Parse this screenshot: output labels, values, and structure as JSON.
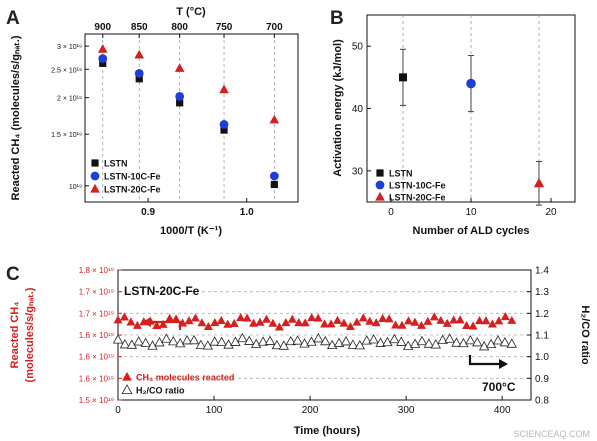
{
  "chart_data": [
    {
      "panel": "A",
      "type": "scatter",
      "xlabel": "1000/T (K⁻¹)",
      "ylabel": "Reacted CH₄ (molecules/s/gₙₐₜ.)",
      "top_axis_label": "T (°C)",
      "y_scale": "log",
      "xlim": [
        0.836,
        1.052
      ],
      "ylim": [
        8.8e+18,
        3.3e+19
      ],
      "x_ticks": [
        0.9,
        1.0
      ],
      "x_tick_labels": [
        "0.9",
        "1.0"
      ],
      "y_tick_labels": [
        {
          "value": 3e+19,
          "label": "3 × 10¹⁹"
        },
        {
          "value": 2.5e+19,
          "label": "2.5 × 10¹⁹"
        },
        {
          "value": 2e+19,
          "label": "2 × 10¹⁹"
        },
        {
          "value": 1.5e+19,
          "label": "1.5 × 10¹⁹"
        },
        {
          "value": 1e+19,
          "label": "10¹⁹"
        }
      ],
      "top_ticks": [
        {
          "x": 0.854,
          "label": "900"
        },
        {
          "x": 0.891,
          "label": "850"
        },
        {
          "x": 0.932,
          "label": "800"
        },
        {
          "x": 0.977,
          "label": "750"
        },
        {
          "x": 1.028,
          "label": "700"
        }
      ],
      "gridlines": "vertical dashed at each temperature",
      "legend_position": "bottom-left",
      "series": [
        {
          "name": "LSTN",
          "marker": "square",
          "color": "#111111",
          "x": [
            0.854,
            0.891,
            0.932,
            0.977,
            1.028
          ],
          "y": [
            2.62e+19,
            2.32e+19,
            1.92e+19,
            1.55e+19,
            1.01e+19
          ]
        },
        {
          "name": "LSTN-10C-Fe",
          "marker": "circle",
          "color": "#1d3fd8",
          "x": [
            0.854,
            0.891,
            0.932,
            0.977,
            1.028
          ],
          "y": [
            2.72e+19,
            2.42e+19,
            2.02e+19,
            1.62e+19,
            1.08e+19
          ]
        },
        {
          "name": "LSTN-20C-Fe",
          "marker": "triangle",
          "color": "#d62020",
          "x": [
            0.854,
            0.891,
            0.932,
            0.977,
            1.028
          ],
          "y": [
            2.93e+19,
            2.8e+19,
            2.52e+19,
            2.13e+19,
            1.68e+19
          ]
        }
      ]
    },
    {
      "panel": "B",
      "type": "scatter",
      "xlabel": "Number of ALD cycles",
      "ylabel": "Activation energy (kJ/mol)",
      "xlim": [
        -3,
        23
      ],
      "ylim": [
        25,
        55
      ],
      "x_ticks": [
        0,
        10,
        20
      ],
      "y_ticks": [
        30,
        40,
        50
      ],
      "gridlines": "vertical dashed at data x positions",
      "legend_position": "bottom-left",
      "series": [
        {
          "name": "LSTN",
          "marker": "square",
          "color": "#111111",
          "x": [
            1.5
          ],
          "y": [
            45.0
          ],
          "err": [
            4.5
          ]
        },
        {
          "name": "LSTN-10C-Fe",
          "marker": "circle",
          "color": "#1d3fd8",
          "x": [
            10
          ],
          "y": [
            44.0
          ],
          "err": [
            4.5
          ]
        },
        {
          "name": "LSTN-20C-Fe",
          "marker": "triangle",
          "color": "#d62020",
          "x": [
            18.5
          ],
          "y": [
            28.0
          ],
          "err": [
            3.5
          ]
        }
      ]
    },
    {
      "panel": "C",
      "type": "line",
      "title": "LSTN-20C-Fe",
      "xlabel": "Time (hours)",
      "ylabel_left": "Reacted CH₄ (molecules/s/gₙₐₜ.)",
      "ylabel_right": "H₂/CO ratio",
      "xlim": [
        0,
        430
      ],
      "x_ticks": [
        0,
        100,
        200,
        300,
        400
      ],
      "left_tick_labels": [
        "1.8 × 10¹⁹",
        "1.7 × 10¹⁹",
        "1.7 × 10¹⁹",
        "1.6 × 10¹⁹",
        "1.6 × 10¹⁹",
        "1.6 × 10¹⁹",
        "1.5 × 10¹⁹"
      ],
      "right_ylim": [
        0.8,
        1.4
      ],
      "right_ticks": [
        0.8,
        0.9,
        1.0,
        1.1,
        1.2,
        1.3,
        1.4
      ],
      "gridlines": "horizontal dashed",
      "legend_position": "bottom-left",
      "annotation": "700°C",
      "series": [
        {
          "name": "CH₄ molecules reacted",
          "marker": "triangle",
          "color": "#d62020",
          "axis": "right",
          "t_range": [
            0,
            410
          ],
          "n_points": 62,
          "mean": 1.16,
          "spread": 0.015
        },
        {
          "name": "H₂/CO ratio",
          "marker": "open-triangle",
          "color": "#222222",
          "axis": "right",
          "t_range": [
            0,
            410
          ],
          "n_points": 58,
          "mean": 1.065,
          "spread": 0.012
        }
      ]
    }
  ],
  "watermark": "SCIENCEAQ.COM"
}
